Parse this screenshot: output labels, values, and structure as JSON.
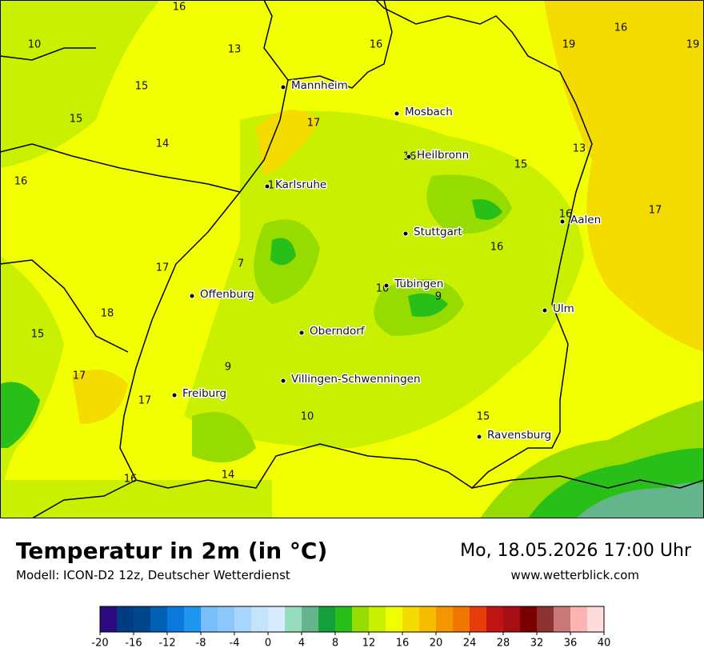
{
  "map": {
    "cities": [
      "Mannheim",
      "Mosbach",
      "Heilbronn",
      "Karlsruhe",
      "Aalen",
      "Stuttgart",
      "Tübingen",
      "Offenburg",
      "Ulm",
      "Oberndorf",
      "Villingen-Schwenningen",
      "Freiburg",
      "Ravensburg"
    ],
    "temperatures": [
      16,
      10,
      13,
      16,
      19,
      16,
      19,
      15,
      15,
      17,
      14,
      16,
      13,
      15,
      16,
      17,
      16,
      17,
      16,
      7,
      17,
      10,
      9,
      18,
      15,
      17,
      9,
      17,
      10,
      15,
      16,
      14
    ]
  },
  "footer": {
    "title": "Temperatur in 2m (in °C)",
    "subtitle": "Modell: ICON-D2 12z, Deutscher Wetterdienst",
    "date": "Mo, 18.05.2026 17:00 Uhr",
    "website": "www.wetterblick.com"
  },
  "legend": {
    "colors": [
      "#2e0a80",
      "#003c82",
      "#00468c",
      "#0060b4",
      "#0a78dc",
      "#1e96f0",
      "#78bef8",
      "#8cc8fa",
      "#a8d6fc",
      "#c4e4fc",
      "#d8ecfe",
      "#96dcbe",
      "#64b48c",
      "#14a03c",
      "#28c018",
      "#96dc00",
      "#c8f000",
      "#f0ff00",
      "#f5dc00",
      "#f5be00",
      "#f59600",
      "#f07800",
      "#e63c0a",
      "#be1414",
      "#a50f14",
      "#780000",
      "#8c3232",
      "#c87878",
      "#ffb4b4",
      "#ffdcdc"
    ],
    "ticks": [
      -20,
      -16,
      -12,
      -8,
      -4,
      0,
      4,
      8,
      12,
      16,
      20,
      24,
      28,
      32,
      36,
      40
    ]
  }
}
